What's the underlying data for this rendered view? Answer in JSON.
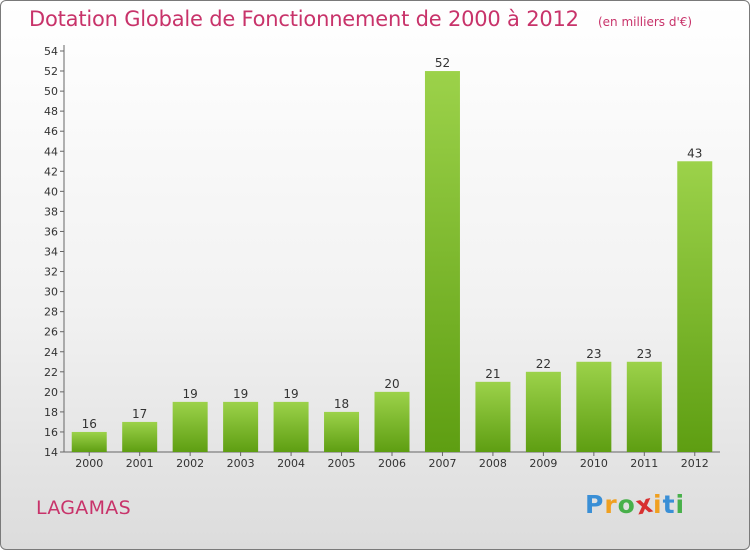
{
  "title": "Dotation Globale de Fonctionnement de 2000 à 2012",
  "subtitle": "(en milliers d'€)",
  "commune": "LAGAMAS",
  "brand": {
    "letters": [
      "P",
      "r",
      "o",
      "x",
      "i",
      "t",
      "i"
    ],
    "colors": [
      "#3a8fd6",
      "#f0a020",
      "#48b04a",
      "#d83030",
      "#f0a020",
      "#3a8fd6",
      "#48b04a"
    ]
  },
  "chart_data": {
    "type": "bar",
    "categories": [
      "2000",
      "2001",
      "2002",
      "2003",
      "2004",
      "2005",
      "2006",
      "2007",
      "2008",
      "2009",
      "2010",
      "2011",
      "2012"
    ],
    "values": [
      16,
      17,
      19,
      19,
      19,
      18,
      20,
      52,
      21,
      22,
      23,
      23,
      43
    ],
    "ylim": [
      14,
      54
    ],
    "yticks": [
      14,
      16,
      18,
      20,
      22,
      24,
      26,
      28,
      30,
      32,
      34,
      36,
      38,
      40,
      42,
      44,
      46,
      48,
      50,
      52,
      54
    ],
    "grid": false,
    "data_labels": true,
    "bar_color_light": "#9cd24a",
    "bar_color_dark": "#5e9e12"
  }
}
